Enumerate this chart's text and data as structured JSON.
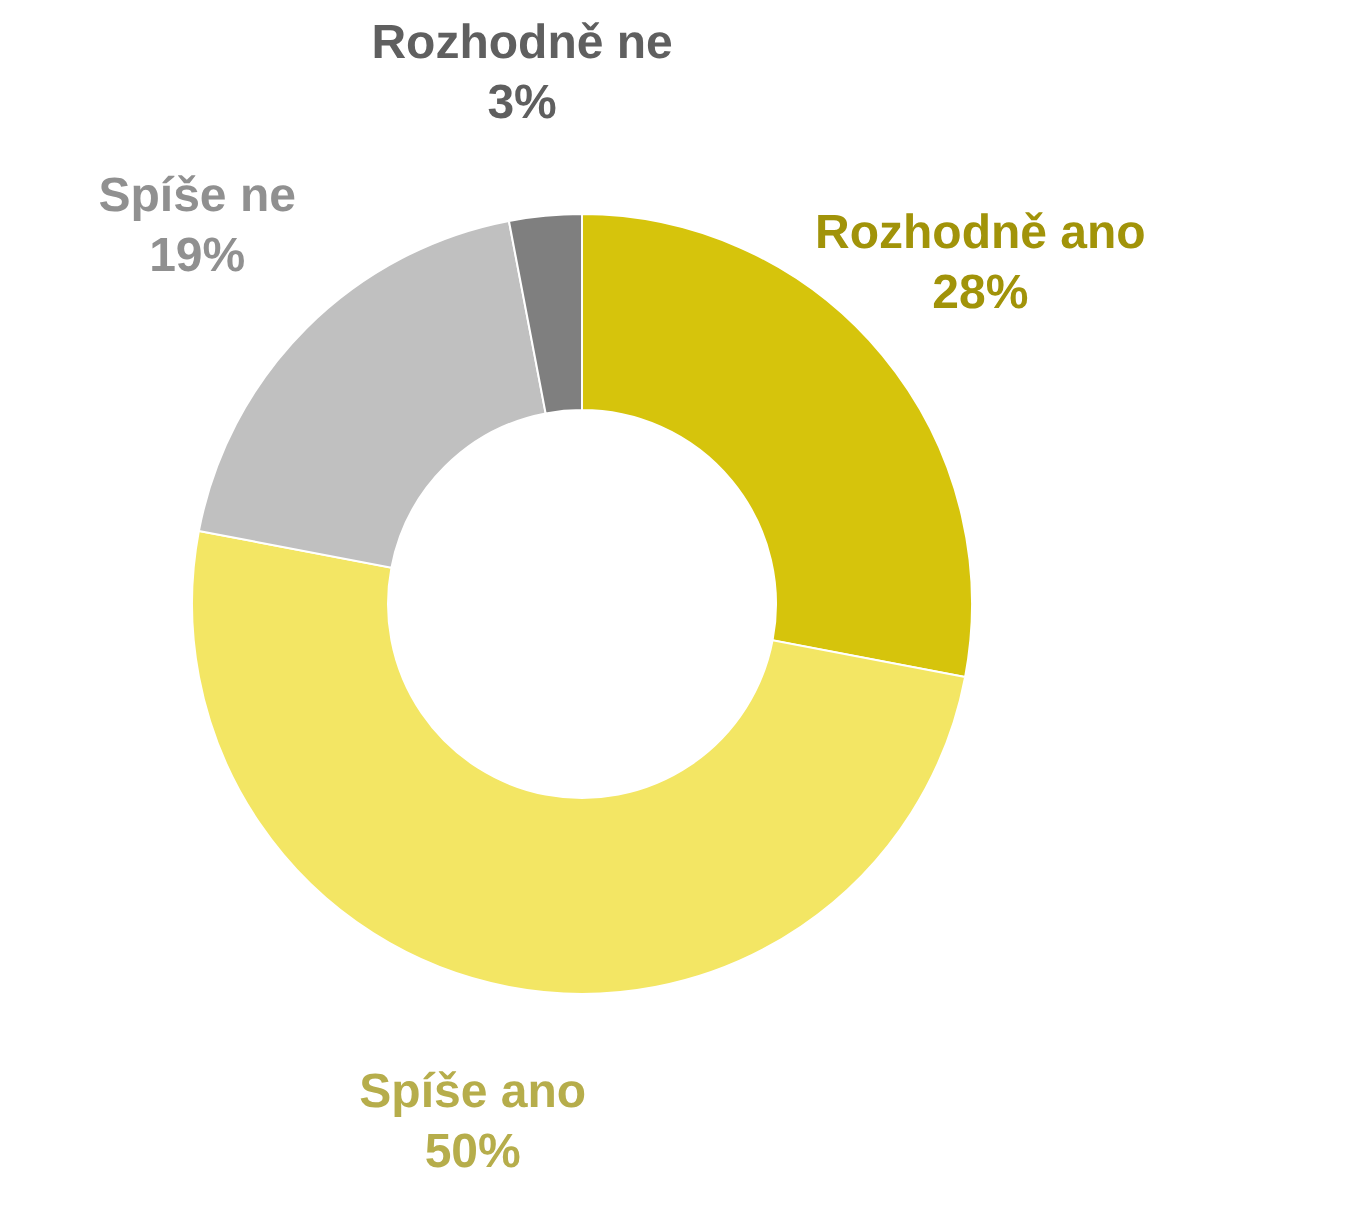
{
  "chart_data": {
    "type": "donut",
    "categories": [
      "Rozhodně ano",
      "Spíše ano",
      "Spíše ne",
      "Rozhodně ne"
    ],
    "values": [
      28,
      50,
      19,
      3
    ],
    "colors": [
      "#d6c40c",
      "#f3e664",
      "#c0c0c0",
      "#7f7f7f"
    ],
    "value_labels": [
      "28%",
      "50%",
      "19%",
      "3%"
    ],
    "legend": false
  }
}
